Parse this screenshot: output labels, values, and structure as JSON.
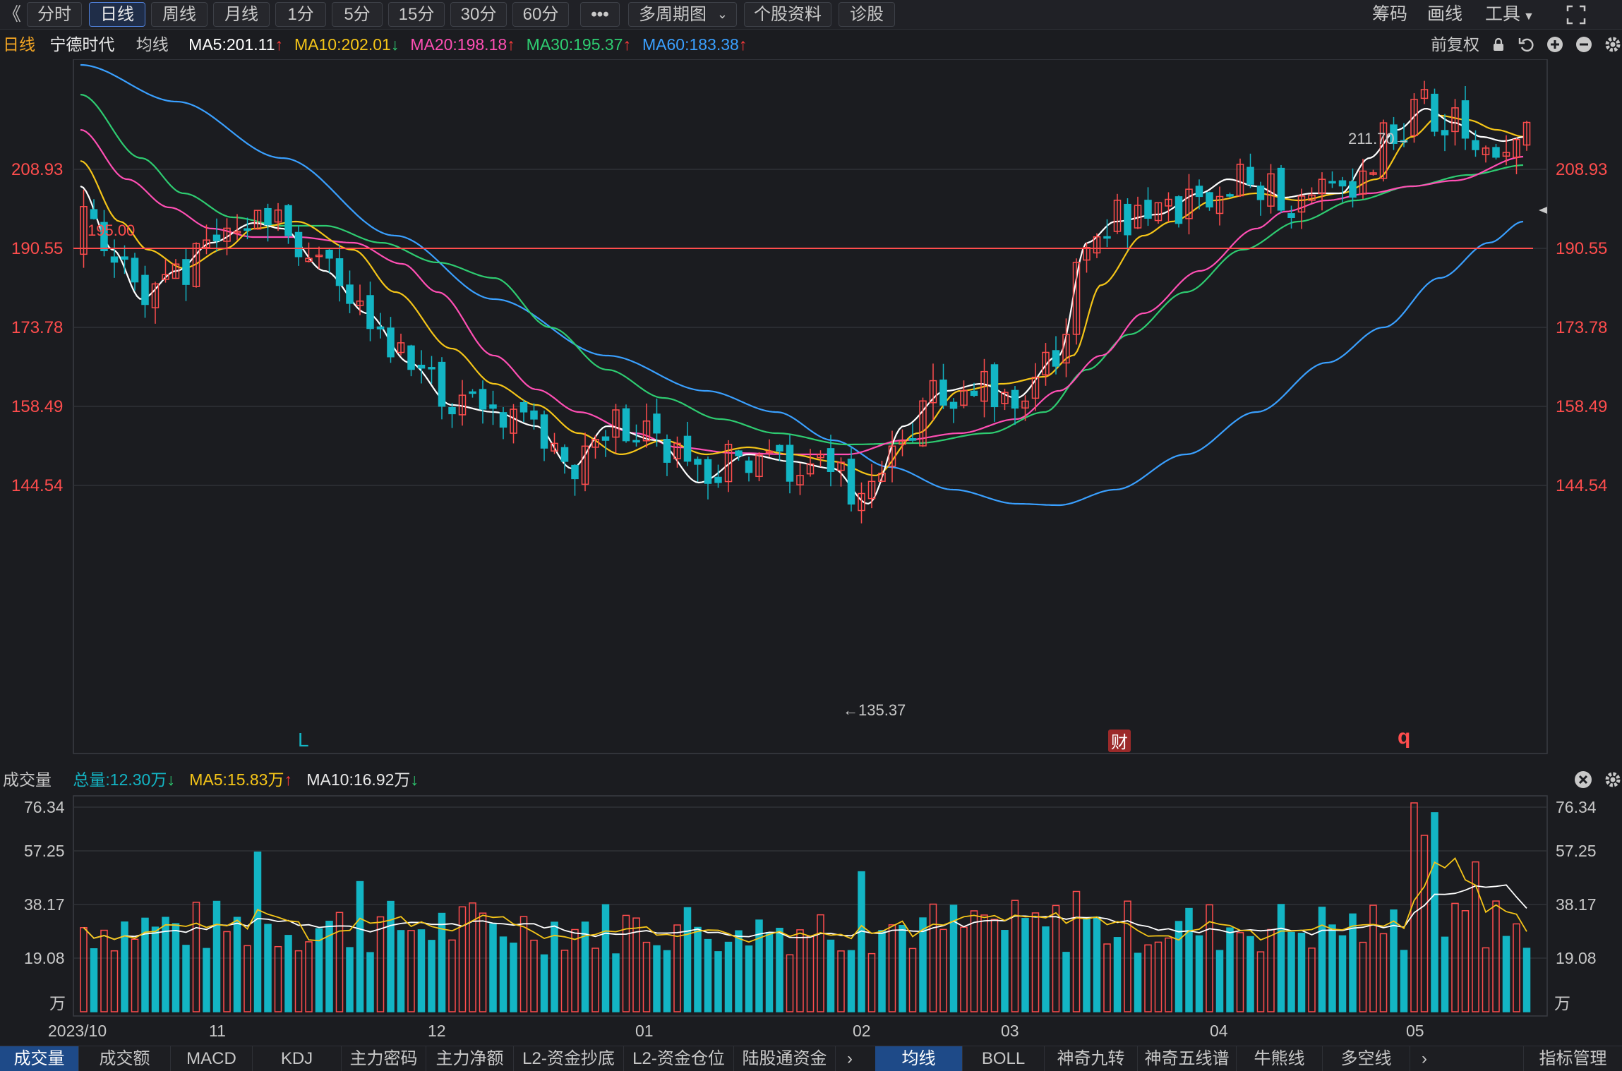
{
  "toolbar": {
    "collapse": "《",
    "periods": [
      "分时",
      "日线",
      "周线",
      "月线",
      "1分",
      "5分",
      "15分",
      "30分",
      "60分"
    ],
    "active_period": "日线",
    "more": "•••",
    "multi_period": "多周期图",
    "stock_info": "个股资料",
    "diagnose": "诊股",
    "chips": "筹码",
    "draw": "画线",
    "tools": "工具",
    "fullscreen_icon": "fullscreen-icon"
  },
  "ma_bar": {
    "period": "日线",
    "stock_name": "宁德时代",
    "ma_label": "均线",
    "ma": [
      {
        "text": "MA5:201.11",
        "arrow": "↑",
        "color": "#ffffff",
        "arrow_color": "#ff3b3b"
      },
      {
        "text": "MA10:202.01",
        "arrow": "↓",
        "color": "#f5c518",
        "arrow_color": "#2ecc71"
      },
      {
        "text": "MA20:198.18",
        "arrow": "↑",
        "color": "#ff4fb4",
        "arrow_color": "#ff3b3b"
      },
      {
        "text": "MA30:195.37",
        "arrow": "↑",
        "color": "#2ecc71",
        "arrow_color": "#ff3b3b"
      },
      {
        "text": "MA60:183.38",
        "arrow": "↑",
        "color": "#3aa0ff",
        "arrow_color": "#ff3b3b"
      }
    ],
    "adjust": "前复权"
  },
  "main_chart": {
    "y_ticks": [
      "208.93",
      "190.55",
      "173.78",
      "158.49",
      "144.54"
    ],
    "line_label": "195.00",
    "high_label": "211.70→",
    "low_label": "←135.37",
    "markers": {
      "L": "L",
      "cai": "财",
      "q": "q"
    }
  },
  "volume": {
    "title": "成交量",
    "total": "总量:12.30万",
    "total_arrow": "↓",
    "ma5": "MA5:15.83万",
    "ma5_arrow": "↑",
    "ma10": "MA10:16.92万",
    "ma10_arrow": "↓",
    "y_ticks": [
      "76.34",
      "57.25",
      "38.17",
      "19.08"
    ],
    "unit": "万"
  },
  "dates": [
    "2023/10",
    "11",
    "12",
    "01",
    "02",
    "03",
    "04",
    "05"
  ],
  "bottom_tabs_left": [
    "成交量",
    "成交额",
    "MACD",
    "KDJ",
    "主力密码",
    "主力净额",
    "L2-资金抄底",
    "L2-资金仓位",
    "陆股通资金"
  ],
  "bottom_tabs_right": [
    "均线",
    "BOLL",
    "神奇九转",
    "神奇五线谱",
    "牛熊线",
    "多空线"
  ],
  "indicator_mgmt": "指标管理",
  "colors": {
    "up": "#ff4d4d",
    "down": "#13b5c4",
    "ma5": "#ffffff",
    "ma10": "#f5c518",
    "ma20": "#ff4fb4",
    "ma30": "#2ecc71",
    "ma60": "#3aa0ff"
  }
}
